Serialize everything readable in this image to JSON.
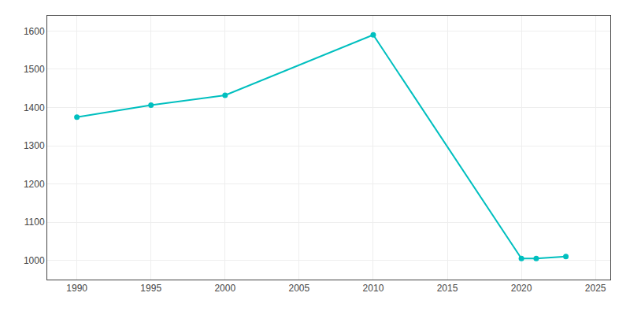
{
  "chart_data": {
    "type": "line",
    "x": [
      1990,
      1995,
      2000,
      2010,
      2020,
      2021,
      2023
    ],
    "values": [
      1375,
      1406,
      1432,
      1590,
      1005,
      1005,
      1010
    ],
    "color": "#00BFBF",
    "marker": "circle",
    "line_style": "solid",
    "xlim": [
      1988,
      2026
    ],
    "xticks": [
      1990,
      1995,
      2000,
      2005,
      2010,
      2015,
      2020,
      2025
    ],
    "ylim": [
      950,
      1640
    ],
    "yticks": [
      1000,
      1100,
      1200,
      1300,
      1400,
      1500,
      1600
    ],
    "grid": true
  }
}
